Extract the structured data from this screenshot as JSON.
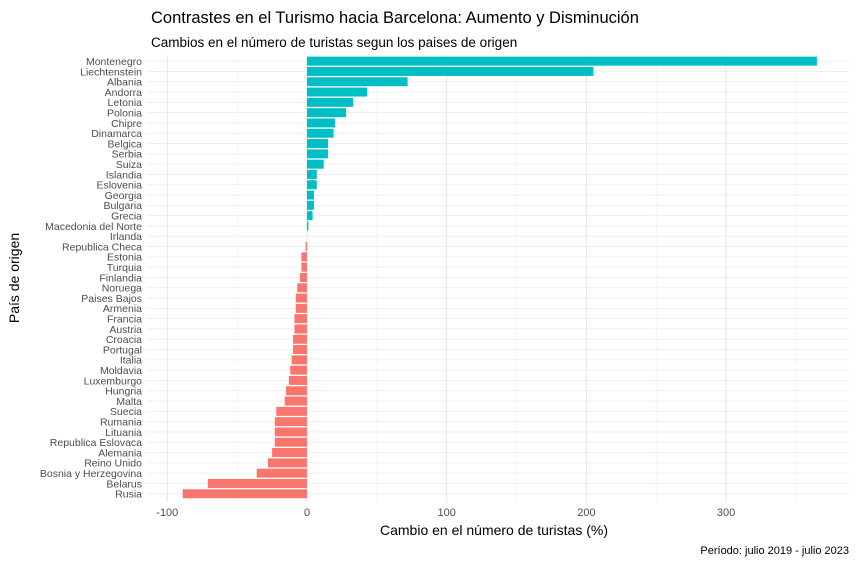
{
  "chart_data": {
    "type": "bar",
    "orientation": "horizontal",
    "title": "Contrastes en el Turismo hacia Barcelona: Aumento y Disminución",
    "subtitle": "Cambios en el número de turistas segun los paises de origen",
    "xlabel": "Cambio en el número de turistas (%)",
    "ylabel": "País de origen",
    "caption": "Período: julio 2019 - julio 2023",
    "xlim": [
      -108,
      375
    ],
    "xticks": [
      -100,
      0,
      100,
      200,
      300
    ],
    "xtick_labels": [
      "-100",
      "0",
      "100",
      "200",
      "300"
    ],
    "grid": true,
    "legend": "none",
    "colors": {
      "positive": "#00BFC4",
      "negative": "#F8766D"
    },
    "categories": [
      "Montenegro",
      "Liechtenstein",
      "Albania",
      "Andorra",
      "Letonia",
      "Polonia",
      "Chipre",
      "Dinamarca",
      "Belgica",
      "Serbia",
      "Suiza",
      "Islandia",
      "Eslovenia",
      "Georgia",
      "Bulgaria",
      "Grecia",
      "Macedonia del Norte",
      "Irlanda",
      "Republica Checa",
      "Estonia",
      "Turquia",
      "Finlandia",
      "Noruega",
      "Paises Bajos",
      "Armenia",
      "Francia",
      "Austria",
      "Croacia",
      "Portugal",
      "Italia",
      "Moldavia",
      "Luxemburgo",
      "Hungria",
      "Malta",
      "Suecia",
      "Rumania",
      "Lituania",
      "Republica Eslovaca",
      "Alemania",
      "Reino Unido",
      "Bosnia y Herzegovina",
      "Belarus",
      "Rusia"
    ],
    "values": [
      365,
      205,
      72,
      43,
      33,
      28,
      20,
      19,
      15,
      15,
      12,
      7,
      7,
      5,
      5,
      4,
      1,
      0,
      -1,
      -4,
      -4,
      -5,
      -7,
      -8,
      -8,
      -9,
      -9,
      -10,
      -10,
      -11,
      -12,
      -13,
      -15,
      -16,
      -22,
      -23,
      -23,
      -23,
      -25,
      -28,
      -36,
      -71,
      -89
    ]
  }
}
